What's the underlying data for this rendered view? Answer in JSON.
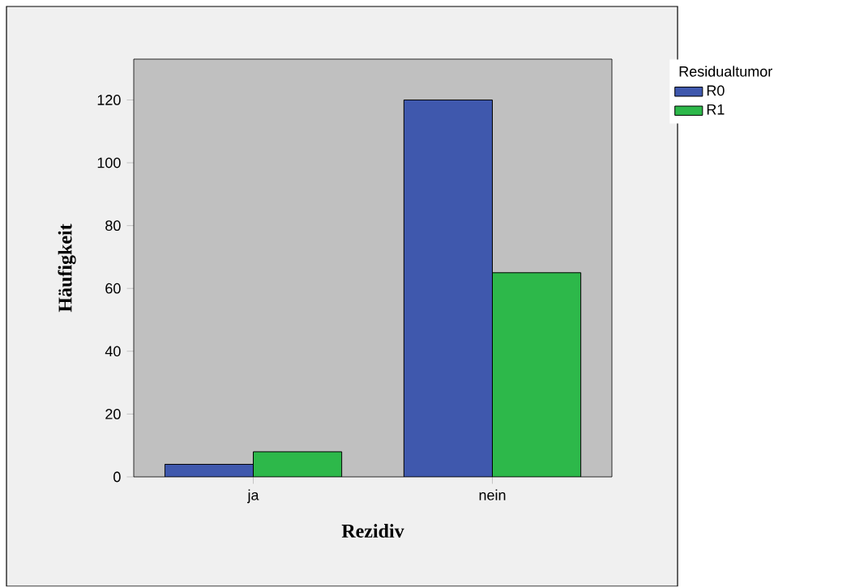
{
  "chart_data": {
    "type": "bar",
    "xlabel": "Rezidiv",
    "ylabel": "Häufigkeit",
    "legend_title": "Residualtumor",
    "categories": [
      "ja",
      "nein"
    ],
    "series": [
      {
        "name": "R0",
        "color": "#3f58ad",
        "values": [
          4,
          120
        ]
      },
      {
        "name": "R1",
        "color": "#2db84a",
        "values": [
          8,
          65
        ]
      }
    ],
    "ylim": [
      0,
      133
    ],
    "yticks": [
      0,
      20,
      40,
      60,
      80,
      100,
      120
    ],
    "grid": false,
    "legend": "top right"
  }
}
